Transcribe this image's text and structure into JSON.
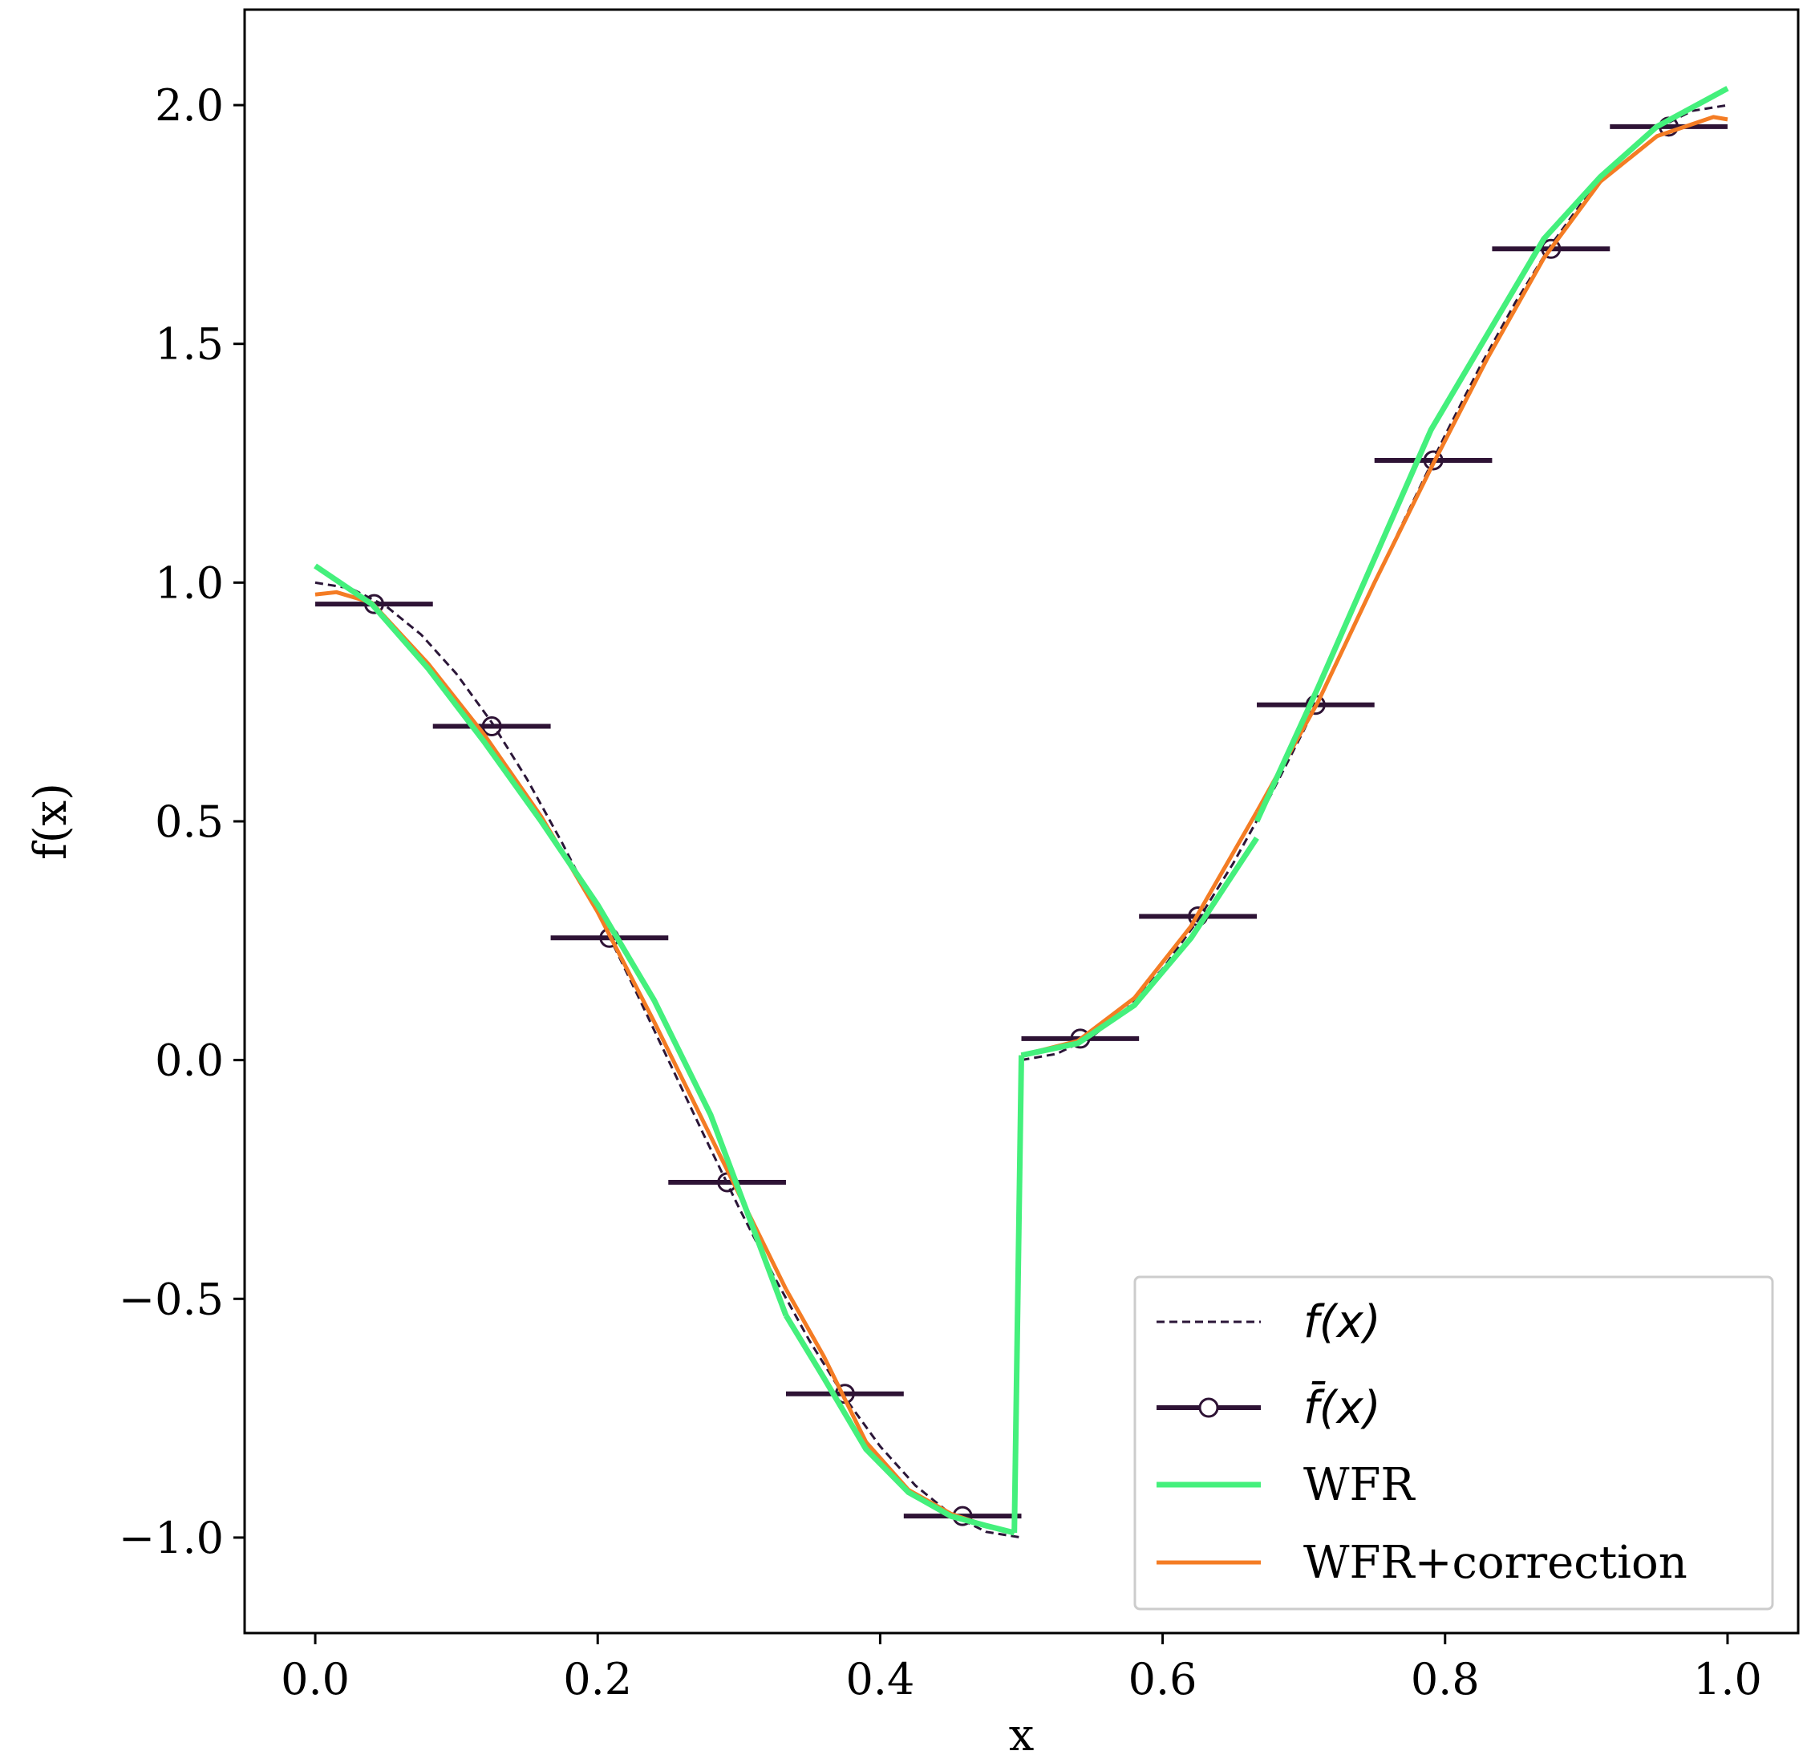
{
  "chart_data": {
    "type": "line",
    "title": "",
    "xlabel": "x",
    "ylabel": "f(x)",
    "xlim": [
      -0.05,
      1.05
    ],
    "ylim": [
      -1.2,
      2.2
    ],
    "x_ticks": [
      0.0,
      0.2,
      0.4,
      0.6,
      0.8,
      1.0
    ],
    "y_ticks": [
      -1.0,
      -0.5,
      0.0,
      0.5,
      1.0,
      1.5,
      2.0
    ],
    "x_tick_labels": [
      "0.0",
      "0.2",
      "0.4",
      "0.6",
      "0.8",
      "1.0"
    ],
    "y_tick_labels": [
      "−1.0",
      "−0.5",
      "0.0",
      "0.5",
      "1.0",
      "1.5",
      "2.0"
    ],
    "grid": false,
    "legend_position": "bottom-right",
    "colors": {
      "exact": "#2b1638",
      "cell_average": "#2e1335",
      "wfr": "#44f07c",
      "wfr_correction": "#f47c24"
    },
    "series": [
      {
        "name": "f(x)",
        "style": "dashed",
        "x": [
          0.0,
          0.025,
          0.05,
          0.075,
          0.1,
          0.125,
          0.15,
          0.175,
          0.2,
          0.225,
          0.25,
          0.275,
          0.3,
          0.325,
          0.35,
          0.375,
          0.4,
          0.425,
          0.45,
          0.475,
          0.5,
          0.5,
          0.525,
          0.55,
          0.575,
          0.6,
          0.625,
          0.65,
          0.675,
          0.7,
          0.725,
          0.75,
          0.775,
          0.8,
          0.825,
          0.85,
          0.875,
          0.9,
          0.925,
          0.95,
          0.975,
          1.0
        ],
        "y": [
          1.0,
          0.988,
          0.951,
          0.891,
          0.809,
          0.707,
          0.588,
          0.454,
          0.309,
          0.156,
          0.0,
          -0.156,
          -0.309,
          -0.454,
          -0.588,
          -0.707,
          -0.809,
          -0.891,
          -0.951,
          -0.988,
          -1.0,
          0.0,
          0.013,
          0.049,
          0.109,
          0.191,
          0.293,
          0.412,
          0.546,
          0.691,
          0.844,
          1.0,
          1.156,
          1.309,
          1.454,
          1.588,
          1.707,
          1.809,
          1.891,
          1.951,
          1.988,
          2.0
        ]
      },
      {
        "name": "f̄(x)",
        "style": "cell-averages",
        "cell_edges": [
          0.0,
          0.0833,
          0.1667,
          0.25,
          0.3333,
          0.4167,
          0.5,
          0.5833,
          0.6667,
          0.75,
          0.8333,
          0.9167,
          1.0
        ],
        "x": [
          0.0417,
          0.125,
          0.2083,
          0.2917,
          0.375,
          0.4583,
          0.5417,
          0.625,
          0.7083,
          0.7917,
          0.875,
          0.9583
        ],
        "y": [
          0.955,
          0.699,
          0.256,
          -0.256,
          -0.699,
          -0.955,
          0.045,
          0.301,
          0.744,
          1.256,
          1.699,
          1.955
        ]
      },
      {
        "name": "WFR",
        "style": "solid-thick",
        "segments": [
          {
            "x": [
              0.0,
              0.04,
              0.08,
              0.12,
              0.16,
              0.2,
              0.24,
              0.28,
              0.3333
            ],
            "y": [
              1.035,
              0.955,
              0.82,
              0.665,
              0.5,
              0.325,
              0.125,
              -0.115,
              -0.535
            ]
          },
          {
            "x": [
              0.3333,
              0.36,
              0.39,
              0.42,
              0.45,
              0.475,
              0.495
            ],
            "y": [
              -0.535,
              -0.665,
              -0.815,
              -0.905,
              -0.955,
              -0.975,
              -0.99
            ]
          },
          {
            "x": [
              0.495,
              0.5
            ],
            "y": [
              -0.99,
              0.01
            ]
          },
          {
            "x": [
              0.5,
              0.54,
              0.58,
              0.62,
              0.6667
            ],
            "y": [
              0.01,
              0.035,
              0.115,
              0.255,
              0.465
            ]
          },
          {
            "x": [
              0.6667,
              0.71,
              0.75,
              0.79,
              0.83,
              0.87,
              0.91,
              0.95,
              1.0
            ],
            "y": [
              0.5,
              0.78,
              1.05,
              1.32,
              1.52,
              1.72,
              1.85,
              1.955,
              2.035
            ]
          }
        ]
      },
      {
        "name": "WFR+correction",
        "style": "solid",
        "segments": [
          {
            "x": [
              0.0,
              0.015,
              0.04,
              0.08,
              0.12,
              0.16,
              0.2,
              0.24,
              0.28,
              0.3333
            ],
            "y": [
              0.975,
              0.98,
              0.958,
              0.83,
              0.68,
              0.51,
              0.31,
              0.08,
              -0.16,
              -0.48
            ]
          },
          {
            "x": [
              0.3333,
              0.36,
              0.39,
              0.42,
              0.45,
              0.475,
              0.495
            ],
            "y": [
              -0.48,
              -0.62,
              -0.8,
              -0.9,
              -0.95,
              -0.975,
              -0.99
            ]
          },
          {
            "x": [
              0.495,
              0.5
            ],
            "y": [
              -0.99,
              0.01
            ]
          },
          {
            "x": [
              0.5,
              0.54,
              0.58,
              0.62,
              0.6667
            ],
            "y": [
              0.01,
              0.04,
              0.13,
              0.28,
              0.52
            ]
          },
          {
            "x": [
              0.6667,
              0.71,
              0.75,
              0.79,
              0.83,
              0.87,
              0.91,
              0.95,
              0.99,
              1.0
            ],
            "y": [
              0.52,
              0.75,
              1.0,
              1.24,
              1.47,
              1.68,
              1.84,
              1.935,
              1.975,
              1.97
            ]
          }
        ]
      }
    ],
    "legend": [
      {
        "key": "exact",
        "label": "f(x)"
      },
      {
        "key": "cell_average",
        "label": "f̄(x)"
      },
      {
        "key": "wfr",
        "label": "WFR"
      },
      {
        "key": "wfr_correction",
        "label": "WFR+correction"
      }
    ]
  }
}
